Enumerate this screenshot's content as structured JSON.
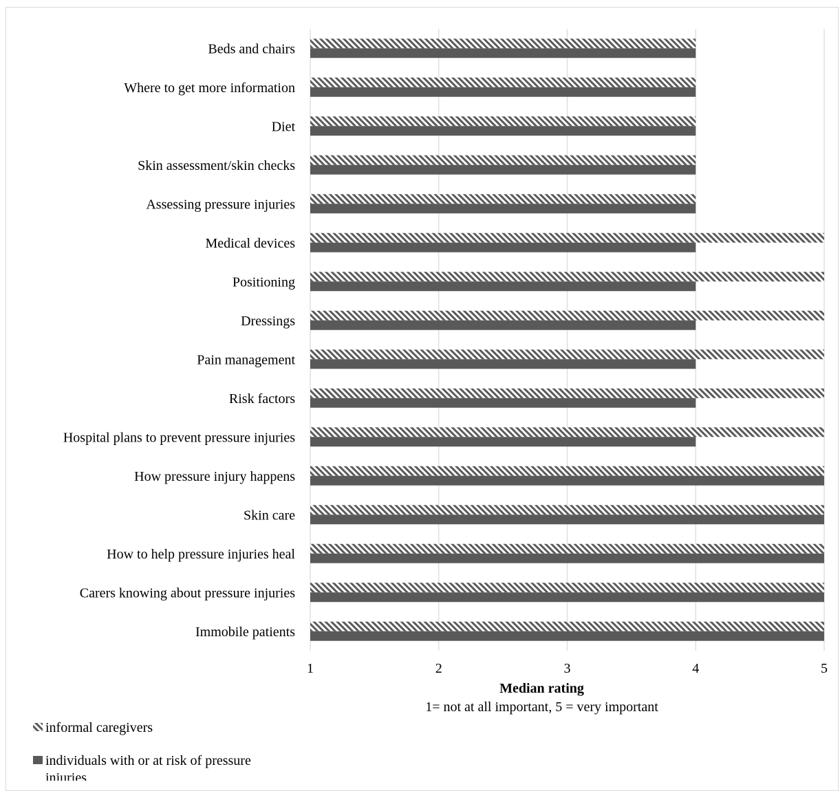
{
  "chart_data": {
    "type": "bar",
    "orientation": "horizontal",
    "categories": [
      "Beds and chairs",
      "Where to get more information",
      "Diet",
      "Skin assessment/skin checks",
      "Assessing pressure injuries",
      "Medical devices",
      "Positioning",
      "Dressings",
      "Pain management",
      "Risk factors",
      "Hospital plans to prevent pressure injuries",
      "How pressure injury happens",
      "Skin care",
      "How to help pressure injuries heal",
      "Carers knowing about pressure injuries",
      "Immobile patients"
    ],
    "series": [
      {
        "name": "informal caregivers",
        "pattern": "hatched",
        "color": "#595959",
        "values": [
          4,
          4,
          4,
          4,
          4,
          5,
          5,
          5,
          5,
          5,
          5,
          5,
          5,
          5,
          5,
          5
        ]
      },
      {
        "name": "individuals with or at risk of pressure injuries",
        "pattern": "solid",
        "color": "#595959",
        "values": [
          4,
          4,
          4,
          4,
          4,
          4,
          4,
          4,
          4,
          4,
          4,
          5,
          5,
          5,
          5,
          5
        ]
      }
    ],
    "xlim": [
      1,
      5
    ],
    "xticks": [
      "1",
      "2",
      "3",
      "4",
      "5"
    ],
    "xlabel": "Median rating",
    "xlabel_note": "1= not at all important, 5 = very important",
    "grid": true,
    "legend_position": "bottom-left"
  }
}
